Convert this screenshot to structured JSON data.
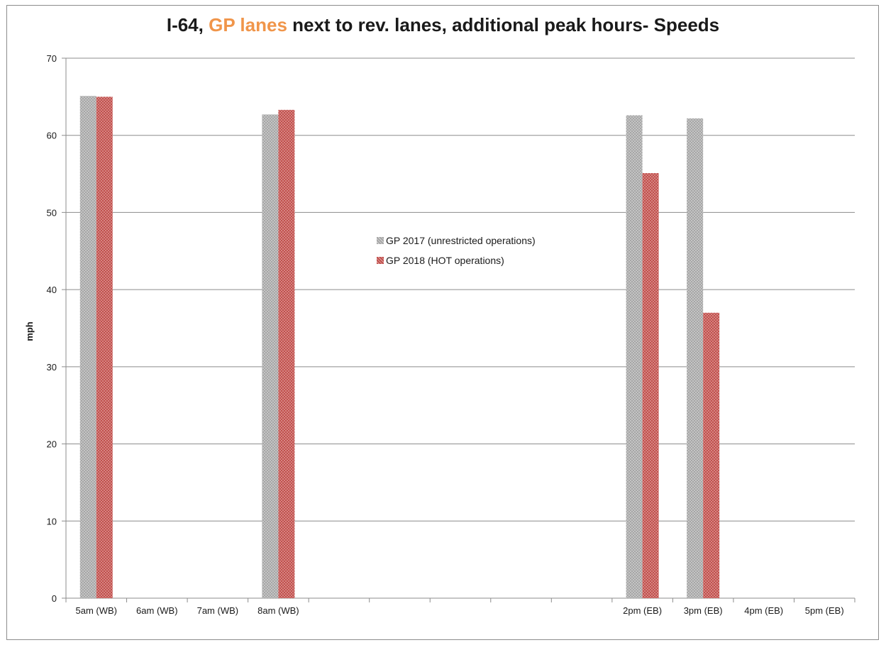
{
  "title": {
    "prefix": "I-64, ",
    "accent": "GP lanes",
    "suffix": " next to rev. lanes, additional peak hours- Speeds"
  },
  "colors": {
    "accent": "#f0954a",
    "series_gray": "#a6a6a6",
    "series_red": "#c0504d",
    "grid": "#8c8c8c"
  },
  "chart_data": {
    "type": "bar",
    "title": "I-64, GP lanes next to rev. lanes, additional peak hours- Speeds",
    "xlabel": "",
    "ylabel": "mph",
    "ylim": [
      0,
      70
    ],
    "yticks": [
      0,
      10,
      20,
      30,
      40,
      50,
      60,
      70
    ],
    "grid": true,
    "legend_position": "center",
    "categories": [
      "5am (WB)",
      "6am (WB)",
      "7am (WB)",
      "8am (WB)",
      "",
      "",
      "",
      "",
      "",
      "2pm (EB)",
      "3pm (EB)",
      "4pm (EB)",
      "5pm (EB)"
    ],
    "series": [
      {
        "name": "GP 2017 (unrestricted operations)",
        "color": "#a6a6a6",
        "values": [
          65.1,
          null,
          null,
          62.7,
          null,
          null,
          null,
          null,
          null,
          62.6,
          62.2,
          null,
          null
        ]
      },
      {
        "name": "GP 2018 (HOT operations)",
        "color": "#c0504d",
        "values": [
          65.0,
          null,
          null,
          63.3,
          null,
          null,
          null,
          null,
          null,
          55.1,
          37.0,
          null,
          null
        ]
      }
    ]
  }
}
